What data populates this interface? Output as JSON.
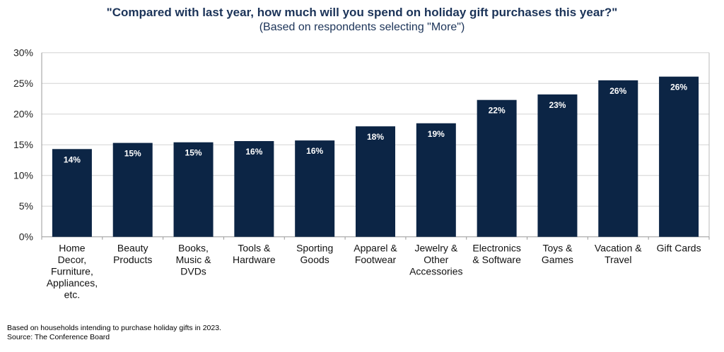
{
  "chart_data": {
    "type": "bar",
    "title": "\"Compared with last year, how much will you spend on holiday gift purchases this year?\"",
    "subtitle": "(Based on respondents selecting \"More\")",
    "categories": [
      [
        "Home",
        "Decor,",
        "Furniture,",
        "Appliances,",
        "etc."
      ],
      [
        "Beauty",
        "Products"
      ],
      [
        "Books,",
        "Music &",
        "DVDs"
      ],
      [
        "Tools &",
        "Hardware"
      ],
      [
        "Sporting",
        "Goods"
      ],
      [
        "Apparel &",
        "Footwear"
      ],
      [
        "Jewelry &",
        "Other",
        "Accessories"
      ],
      [
        "Electronics",
        "& Software"
      ],
      [
        "Toys &",
        "Games"
      ],
      [
        "Vacation &",
        "Travel"
      ],
      [
        "Gift Cards"
      ]
    ],
    "values": [
      14.3,
      15.3,
      15.4,
      15.6,
      15.7,
      18.0,
      18.5,
      22.3,
      23.2,
      25.5,
      26.1
    ],
    "data_labels": [
      "14%",
      "15%",
      "15%",
      "16%",
      "16%",
      "18%",
      "19%",
      "22%",
      "23%",
      "26%",
      "26%"
    ],
    "ylim": [
      0,
      30
    ],
    "yticks": [
      "0%",
      "5%",
      "10%",
      "15%",
      "20%",
      "25%",
      "30%"
    ],
    "grid": true,
    "legend": "none",
    "colors": {
      "bar": "#0c2545",
      "title": "#1b3358",
      "grid": "#d4d4d4"
    }
  },
  "footnotes": {
    "note": "Based on households intending to purchase holiday gifts in 2023.",
    "source": "Source: The Conference Board"
  }
}
